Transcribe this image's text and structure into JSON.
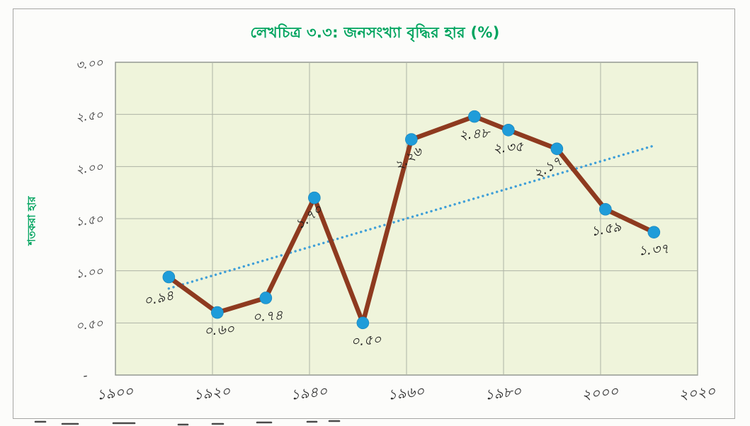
{
  "figure": {
    "title": "লেখচিত্র ৩.৩: জনসংখ্যা বৃদ্ধির হার (%)",
    "y_axis_title": "শতকরা হার"
  },
  "chart_data": {
    "type": "line",
    "title": "লেখচিত্র ৩.৩: জনসংখ্যা বৃদ্ধির হার (%)",
    "xlabel": "",
    "ylabel": "শতকরা হার",
    "xlim": [
      1900,
      2020
    ],
    "ylim": [
      0,
      3
    ],
    "grid": true,
    "x": [
      1911,
      1921,
      1931,
      1941,
      1951,
      1961,
      1974,
      1981,
      1991,
      2001,
      2011
    ],
    "series": [
      {
        "name": "জনসংখ্যা বৃদ্ধির হার",
        "values": [
          0.94,
          0.6,
          0.74,
          1.7,
          0.5,
          2.26,
          2.48,
          2.35,
          2.17,
          1.59,
          1.37
        ],
        "point_labels": [
          "০.৯৪",
          "০.৬০",
          "০.৭৪",
          "১.৭০",
          "০.৫০",
          "২.২৬",
          "২.৪৮",
          "২.৩৫",
          "২.১৭",
          "১.৫৯",
          "১.৩৭"
        ]
      }
    ],
    "trendline": {
      "style": "dotted",
      "start": {
        "x": 1911,
        "y": 0.83
      },
      "end": {
        "x": 2011,
        "y": 2.2
      }
    },
    "x_ticks": [
      {
        "value": 1900,
        "label": "১৯০০"
      },
      {
        "value": 1920,
        "label": "১৯২০"
      },
      {
        "value": 1940,
        "label": "১৯৪০"
      },
      {
        "value": 1960,
        "label": "১৯৬০"
      },
      {
        "value": 1980,
        "label": "১৯৮০"
      },
      {
        "value": 2000,
        "label": "২০০০"
      },
      {
        "value": 2020,
        "label": "২০২০"
      }
    ],
    "y_ticks": [
      {
        "value": 3.0,
        "label": "৩.০০"
      },
      {
        "value": 2.5,
        "label": "২.৫০"
      },
      {
        "value": 2.0,
        "label": "২.০০"
      },
      {
        "value": 1.5,
        "label": "১.৫০"
      },
      {
        "value": 1.0,
        "label": "১.০০"
      },
      {
        "value": 0.5,
        "label": "০.৫০"
      },
      {
        "value": 0.0,
        "label": "-"
      }
    ],
    "colors": {
      "series_line": "#8E3A1F",
      "marker": "#1F9CD9",
      "trendline": "#3F9FD8",
      "plot_background": "#EFF4DB",
      "gridline": "#AEB3A6",
      "plot_border": "#8D928C",
      "title": "#00A45F",
      "tick_text": "#2E2E2E"
    }
  }
}
